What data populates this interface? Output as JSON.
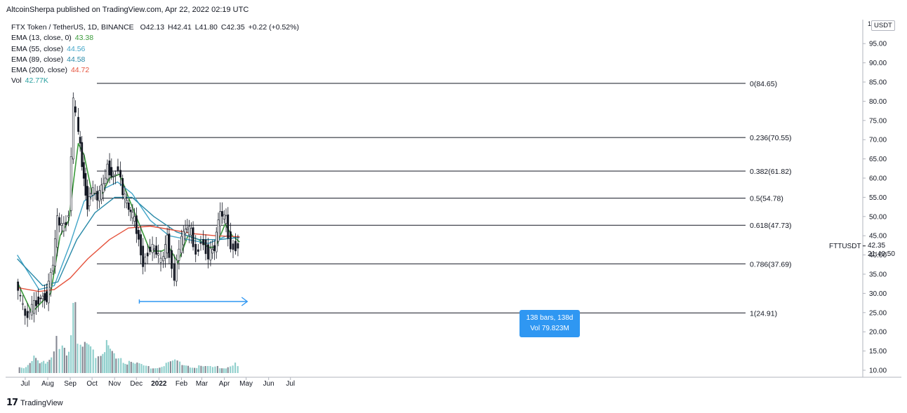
{
  "header": {
    "published": "AltcoinSherpa published on TradingView.com, Apr 22, 2022 02:19 UTC"
  },
  "legend": {
    "symbol": "FTX Token / TetherUS, 1D, BINANCE",
    "ohlc": {
      "o": "O42.13",
      "h": "H42.41",
      "l": "L41.80",
      "c": "C42.35",
      "chg": "+0.22 (+0.52%)"
    },
    "indicators": [
      {
        "label": "EMA (13, close, 0)",
        "value": "43.38",
        "color": "#3a9a3a"
      },
      {
        "label": "EMA (55, close)",
        "value": "44.56",
        "color": "#42a5c8"
      },
      {
        "label": "EMA (89, close)",
        "value": "44.58",
        "color": "#2a8aa8"
      },
      {
        "label": "EMA (200, close)",
        "value": "44.72",
        "color": "#e5533d"
      },
      {
        "label": "Vol",
        "value": "42.77K",
        "color": "#29a0a0"
      }
    ]
  },
  "price_axis": {
    "currency_button": "USDT",
    "last_price_symbol": "FTTUSDT",
    "last_price": "42.35",
    "countdown": "21:40:50",
    "top_marker": "1"
  },
  "measure_tool": {
    "line1": "138 bars, 138d",
    "line2": "Vol 79.823M"
  },
  "footer": {
    "logo": "17",
    "brand": "TradingView"
  },
  "chart_data": {
    "type": "candlestick",
    "title": "FTX Token / TetherUS, 1D, BINANCE",
    "y_ticks": [
      10,
      15,
      20,
      25,
      30,
      35,
      40,
      45,
      50,
      55,
      60,
      65,
      70,
      75,
      80,
      85,
      90,
      95
    ],
    "y_tick_labels": [
      "10.00",
      "15.00",
      "20.00",
      "25.00",
      "30.00",
      "35.00",
      "40.00",
      "45.00",
      "50.00",
      "55.00",
      "60.00",
      "65.00",
      "70.00",
      "75.00",
      "80.00",
      "85.00",
      "90.00",
      "95.00"
    ],
    "x_tick_labels": [
      "Jul",
      "Aug",
      "Sep",
      "Oct",
      "Nov",
      "Dec",
      "2022",
      "Feb",
      "Mar",
      "Apr",
      "May",
      "Jun",
      "Jul"
    ],
    "fibonacci": [
      {
        "label": "0(84.65)",
        "price": 84.65
      },
      {
        "label": "0.236(70.55)",
        "price": 70.55
      },
      {
        "label": "0.382(61.82)",
        "price": 61.82
      },
      {
        "label": "0.5(54.78)",
        "price": 54.78
      },
      {
        "label": "0.618(47.73)",
        "price": 47.73
      },
      {
        "label": "0.786(37.69)",
        "price": 37.69
      },
      {
        "label": "1(24.91)",
        "price": 24.91
      }
    ],
    "price_path": [
      {
        "date": "2021-06-20",
        "price": 33
      },
      {
        "date": "2021-07-03",
        "price": 24
      },
      {
        "date": "2021-07-15",
        "price": 27
      },
      {
        "date": "2021-07-24",
        "price": 29
      },
      {
        "date": "2021-08-01",
        "price": 29
      },
      {
        "date": "2021-08-10",
        "price": 38
      },
      {
        "date": "2021-08-16",
        "price": 49
      },
      {
        "date": "2021-08-25",
        "price": 47
      },
      {
        "date": "2021-09-01",
        "price": 51
      },
      {
        "date": "2021-09-04",
        "price": 66
      },
      {
        "date": "2021-09-07",
        "price": 80
      },
      {
        "date": "2021-09-11",
        "price": 76
      },
      {
        "date": "2021-09-16",
        "price": 68
      },
      {
        "date": "2021-09-21",
        "price": 60
      },
      {
        "date": "2021-09-26",
        "price": 53
      },
      {
        "date": "2021-10-01",
        "price": 57
      },
      {
        "date": "2021-10-10",
        "price": 55
      },
      {
        "date": "2021-10-18",
        "price": 58
      },
      {
        "date": "2021-10-24",
        "price": 63
      },
      {
        "date": "2021-11-01",
        "price": 60
      },
      {
        "date": "2021-11-08",
        "price": 63
      },
      {
        "date": "2021-11-14",
        "price": 56
      },
      {
        "date": "2021-11-22",
        "price": 52
      },
      {
        "date": "2021-11-30",
        "price": 49
      },
      {
        "date": "2021-12-06",
        "price": 44
      },
      {
        "date": "2021-12-12",
        "price": 38
      },
      {
        "date": "2021-12-22",
        "price": 42
      },
      {
        "date": "2021-12-30",
        "price": 41
      },
      {
        "date": "2022-01-06",
        "price": 38
      },
      {
        "date": "2022-01-14",
        "price": 44
      },
      {
        "date": "2022-01-21",
        "price": 37
      },
      {
        "date": "2022-01-24",
        "price": 34
      },
      {
        "date": "2022-01-31",
        "price": 42
      },
      {
        "date": "2022-02-08",
        "price": 47
      },
      {
        "date": "2022-02-16",
        "price": 46
      },
      {
        "date": "2022-02-23",
        "price": 40
      },
      {
        "date": "2022-03-02",
        "price": 44
      },
      {
        "date": "2022-03-12",
        "price": 40
      },
      {
        "date": "2022-03-20",
        "price": 42
      },
      {
        "date": "2022-03-28",
        "price": 51
      },
      {
        "date": "2022-04-05",
        "price": 49
      },
      {
        "date": "2022-04-12",
        "price": 42
      },
      {
        "date": "2022-04-22",
        "price": 42.35
      }
    ],
    "ema_series": [
      {
        "name": "EMA (13, close, 0)",
        "color": "#3a9a3a",
        "points": [
          {
            "date": "2021-06-20",
            "price": 33
          },
          {
            "date": "2021-07-10",
            "price": 25
          },
          {
            "date": "2021-07-25",
            "price": 28
          },
          {
            "date": "2021-08-05",
            "price": 30
          },
          {
            "date": "2021-08-18",
            "price": 45
          },
          {
            "date": "2021-08-30",
            "price": 49
          },
          {
            "date": "2021-09-06",
            "price": 60
          },
          {
            "date": "2021-09-12",
            "price": 69
          },
          {
            "date": "2021-09-20",
            "price": 66
          },
          {
            "date": "2021-10-01",
            "price": 56
          },
          {
            "date": "2021-10-15",
            "price": 56
          },
          {
            "date": "2021-10-25",
            "price": 60
          },
          {
            "date": "2021-11-08",
            "price": 61
          },
          {
            "date": "2021-11-20",
            "price": 55
          },
          {
            "date": "2021-12-05",
            "price": 48
          },
          {
            "date": "2021-12-20",
            "price": 41
          },
          {
            "date": "2022-01-05",
            "price": 41
          },
          {
            "date": "2022-01-15",
            "price": 42
          },
          {
            "date": "2022-01-27",
            "price": 38
          },
          {
            "date": "2022-02-10",
            "price": 45
          },
          {
            "date": "2022-02-25",
            "price": 44
          },
          {
            "date": "2022-03-10",
            "price": 42
          },
          {
            "date": "2022-03-20",
            "price": 42
          },
          {
            "date": "2022-04-02",
            "price": 48
          },
          {
            "date": "2022-04-12",
            "price": 45
          },
          {
            "date": "2022-04-22",
            "price": 43.38
          }
        ]
      },
      {
        "name": "EMA (55, close)",
        "color": "#42a5c8",
        "points": [
          {
            "date": "2021-06-20",
            "price": 40
          },
          {
            "date": "2021-07-20",
            "price": 31
          },
          {
            "date": "2021-08-10",
            "price": 32
          },
          {
            "date": "2021-09-01",
            "price": 43
          },
          {
            "date": "2021-09-20",
            "price": 54
          },
          {
            "date": "2021-10-15",
            "price": 57
          },
          {
            "date": "2021-11-05",
            "price": 59
          },
          {
            "date": "2021-11-25",
            "price": 56
          },
          {
            "date": "2021-12-20",
            "price": 49
          },
          {
            "date": "2022-01-15",
            "price": 45
          },
          {
            "date": "2022-02-10",
            "price": 44
          },
          {
            "date": "2022-03-10",
            "price": 43
          },
          {
            "date": "2022-04-05",
            "price": 45
          },
          {
            "date": "2022-04-22",
            "price": 44.56
          }
        ]
      },
      {
        "name": "EMA (89, close)",
        "color": "#2a8aa8",
        "points": [
          {
            "date": "2021-06-20",
            "price": 39
          },
          {
            "date": "2021-07-25",
            "price": 32
          },
          {
            "date": "2021-08-15",
            "price": 33
          },
          {
            "date": "2021-09-10",
            "price": 44
          },
          {
            "date": "2021-10-05",
            "price": 51
          },
          {
            "date": "2021-11-01",
            "price": 55
          },
          {
            "date": "2021-11-25",
            "price": 55
          },
          {
            "date": "2021-12-25",
            "price": 50
          },
          {
            "date": "2022-01-25",
            "price": 46
          },
          {
            "date": "2022-02-25",
            "price": 44
          },
          {
            "date": "2022-03-25",
            "price": 44
          },
          {
            "date": "2022-04-22",
            "price": 44.58
          }
        ]
      },
      {
        "name": "EMA (200, close)",
        "color": "#e5533d",
        "points": [
          {
            "date": "2021-06-20",
            "price": 31.5
          },
          {
            "date": "2021-07-20",
            "price": 30.5
          },
          {
            "date": "2021-08-10",
            "price": 31
          },
          {
            "date": "2021-09-01",
            "price": 34
          },
          {
            "date": "2021-09-25",
            "price": 39
          },
          {
            "date": "2021-10-25",
            "price": 44
          },
          {
            "date": "2021-11-20",
            "price": 47
          },
          {
            "date": "2021-12-20",
            "price": 47.5
          },
          {
            "date": "2022-01-20",
            "price": 46.5
          },
          {
            "date": "2022-02-20",
            "price": 45.5
          },
          {
            "date": "2022-03-20",
            "price": 45
          },
          {
            "date": "2022-04-22",
            "price": 44.72
          }
        ]
      }
    ],
    "volume": [
      {
        "date": "2021-06-22",
        "value": 0.15
      },
      {
        "date": "2021-07-01",
        "value": 0.1
      },
      {
        "date": "2021-07-12",
        "value": 0.25
      },
      {
        "date": "2021-07-20",
        "value": 0.15
      },
      {
        "date": "2021-07-28",
        "value": 0.2
      },
      {
        "date": "2021-08-05",
        "value": 0.3
      },
      {
        "date": "2021-08-12",
        "value": 0.55
      },
      {
        "date": "2021-08-16",
        "value": 0.35
      },
      {
        "date": "2021-08-20",
        "value": 0.5
      },
      {
        "date": "2021-08-26",
        "value": 0.4
      },
      {
        "date": "2021-09-01",
        "value": 0.6
      },
      {
        "date": "2021-09-04",
        "value": 1.0
      },
      {
        "date": "2021-09-07",
        "value": 1.15
      },
      {
        "date": "2021-09-10",
        "value": 0.7
      },
      {
        "date": "2021-09-14",
        "value": 0.5
      },
      {
        "date": "2021-09-20",
        "value": 0.45
      },
      {
        "date": "2021-09-28",
        "value": 0.4
      },
      {
        "date": "2021-10-05",
        "value": 0.3
      },
      {
        "date": "2021-10-12",
        "value": 0.35
      },
      {
        "date": "2021-10-20",
        "value": 0.5
      },
      {
        "date": "2021-10-25",
        "value": 0.35
      },
      {
        "date": "2021-11-02",
        "value": 0.25
      },
      {
        "date": "2021-11-12",
        "value": 0.25
      },
      {
        "date": "2021-11-20",
        "value": 0.2
      },
      {
        "date": "2021-12-01",
        "value": 0.15
      },
      {
        "date": "2021-12-10",
        "value": 0.12
      },
      {
        "date": "2021-12-20",
        "value": 0.1
      },
      {
        "date": "2022-01-01",
        "value": 0.1
      },
      {
        "date": "2022-01-10",
        "value": 0.15
      },
      {
        "date": "2022-01-22",
        "value": 0.2
      },
      {
        "date": "2022-02-01",
        "value": 0.15
      },
      {
        "date": "2022-02-12",
        "value": 0.12
      },
      {
        "date": "2022-02-24",
        "value": 0.12
      },
      {
        "date": "2022-03-05",
        "value": 0.1
      },
      {
        "date": "2022-03-15",
        "value": 0.1
      },
      {
        "date": "2022-03-25",
        "value": 0.12
      },
      {
        "date": "2022-04-05",
        "value": 0.1
      },
      {
        "date": "2022-04-15",
        "value": 0.15
      },
      {
        "date": "2022-04-22",
        "value": 0.05
      }
    ],
    "measure_range": {
      "from": "2021-12-05",
      "to": "2022-04-22"
    }
  }
}
